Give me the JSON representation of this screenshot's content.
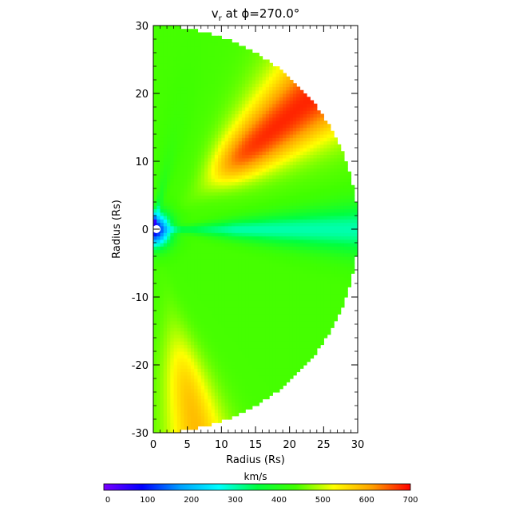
{
  "chart_data": [
    {
      "type": "heatmap",
      "title": "v",
      "title_sub": "r",
      "title_rest": " at ϕ=270.0°",
      "xlabel": "Radius (Rs)",
      "ylabel": "Radius (Rs)",
      "xlim": [
        0,
        30
      ],
      "ylim": [
        -30,
        30
      ],
      "x_ticks": [
        0,
        5,
        10,
        15,
        20,
        25,
        30
      ],
      "y_ticks": [
        -30,
        -20,
        -10,
        0,
        10,
        20,
        30
      ],
      "grid": false,
      "domain_shape": "half-disk of radius 30 Rs centered at origin, inner boundary circle radius ~0.8 Rs",
      "features": [
        {
          "region": "upper-right streamer lobe",
          "r_range": [
            10,
            30
          ],
          "theta_deg": [
            25,
            55
          ],
          "value": 660
        },
        {
          "region": "lower-left streamer lobe",
          "r_range": [
            15,
            30
          ],
          "theta_deg": [
            -85,
            -70
          ],
          "value": 580
        },
        {
          "region": "equatorial slow band",
          "r_range": [
            1,
            30
          ],
          "theta_deg": [
            -5,
            5
          ],
          "value": 300
        },
        {
          "region": "near-sun core",
          "r_range": [
            0,
            3
          ],
          "value": 60
        },
        {
          "region": "background wind",
          "value": 440
        }
      ]
    },
    {
      "type": "colorbar",
      "label": "km/s",
      "range": [
        0,
        700
      ],
      "ticks": [
        0,
        100,
        200,
        300,
        400,
        500,
        600,
        700
      ],
      "colors": [
        "#7a00ff",
        "#0000ff",
        "#00a0ff",
        "#00ffff",
        "#00ff40",
        "#40ff00",
        "#ffff00",
        "#ffa000",
        "#ff0000"
      ]
    }
  ]
}
